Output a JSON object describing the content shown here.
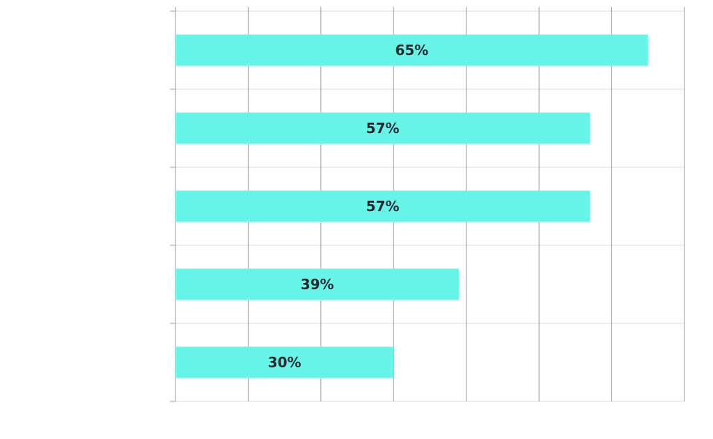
{
  "chart_data": {
    "type": "bar",
    "orientation": "horizontal",
    "title": "",
    "xlabel": "",
    "ylabel": "",
    "categories": [
      "",
      "",
      "",
      "",
      ""
    ],
    "values": [
      65,
      57,
      57,
      39,
      30
    ],
    "data_labels": [
      "65%",
      "57%",
      "57%",
      "39%",
      "30%"
    ],
    "xlim": [
      0,
      70
    ],
    "x_grid_step": 10,
    "grid": true,
    "legend": "none",
    "bar_color": "#66f5e6",
    "label_color": "#1b2a33"
  }
}
